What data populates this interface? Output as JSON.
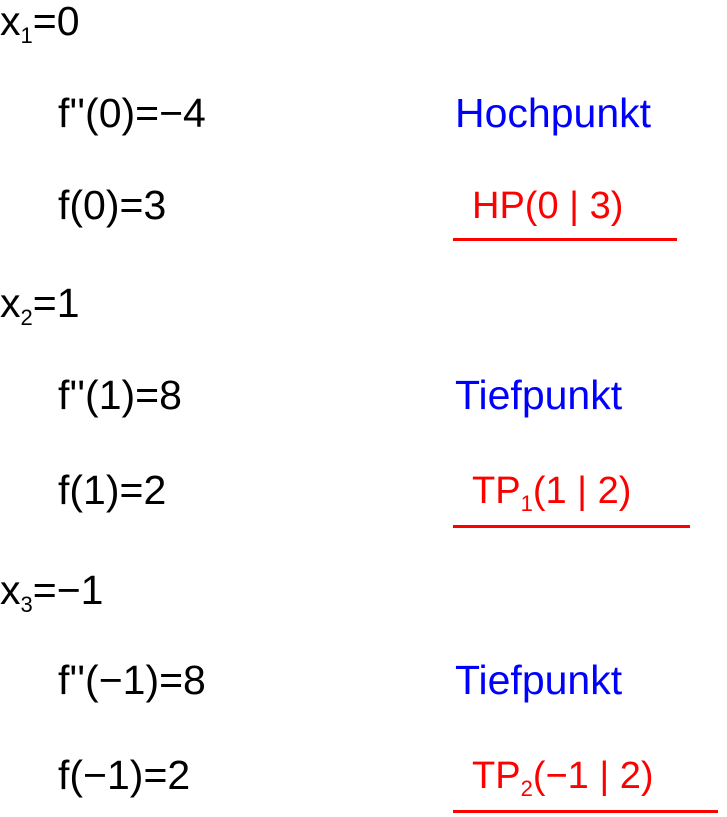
{
  "colors": {
    "classification": "#0000ff",
    "result": "#ff0000"
  },
  "cases": [
    {
      "x_var": "x",
      "x_sub": "1",
      "x_eq": "=0",
      "second_derivative": "f''(0)=−4",
      "value": "f(0)=3",
      "type": "Hochpunkt",
      "point_name": "HP",
      "point_sub": "",
      "point_coords": "(0 | 3)"
    },
    {
      "x_var": "x",
      "x_sub": "2",
      "x_eq": "=1",
      "second_derivative": "f''(1)=8",
      "value": "f(1)=2",
      "type": "Tiefpunkt",
      "point_name": "TP",
      "point_sub": "1",
      "point_coords": "(1 | 2)"
    },
    {
      "x_var": "x",
      "x_sub": "3",
      "x_eq": "=−1",
      "second_derivative": "f''(−1)=8",
      "value": "f(−1)=2",
      "type": "Tiefpunkt",
      "point_name": "TP",
      "point_sub": "2",
      "point_coords": "(−1 | 2)"
    }
  ]
}
